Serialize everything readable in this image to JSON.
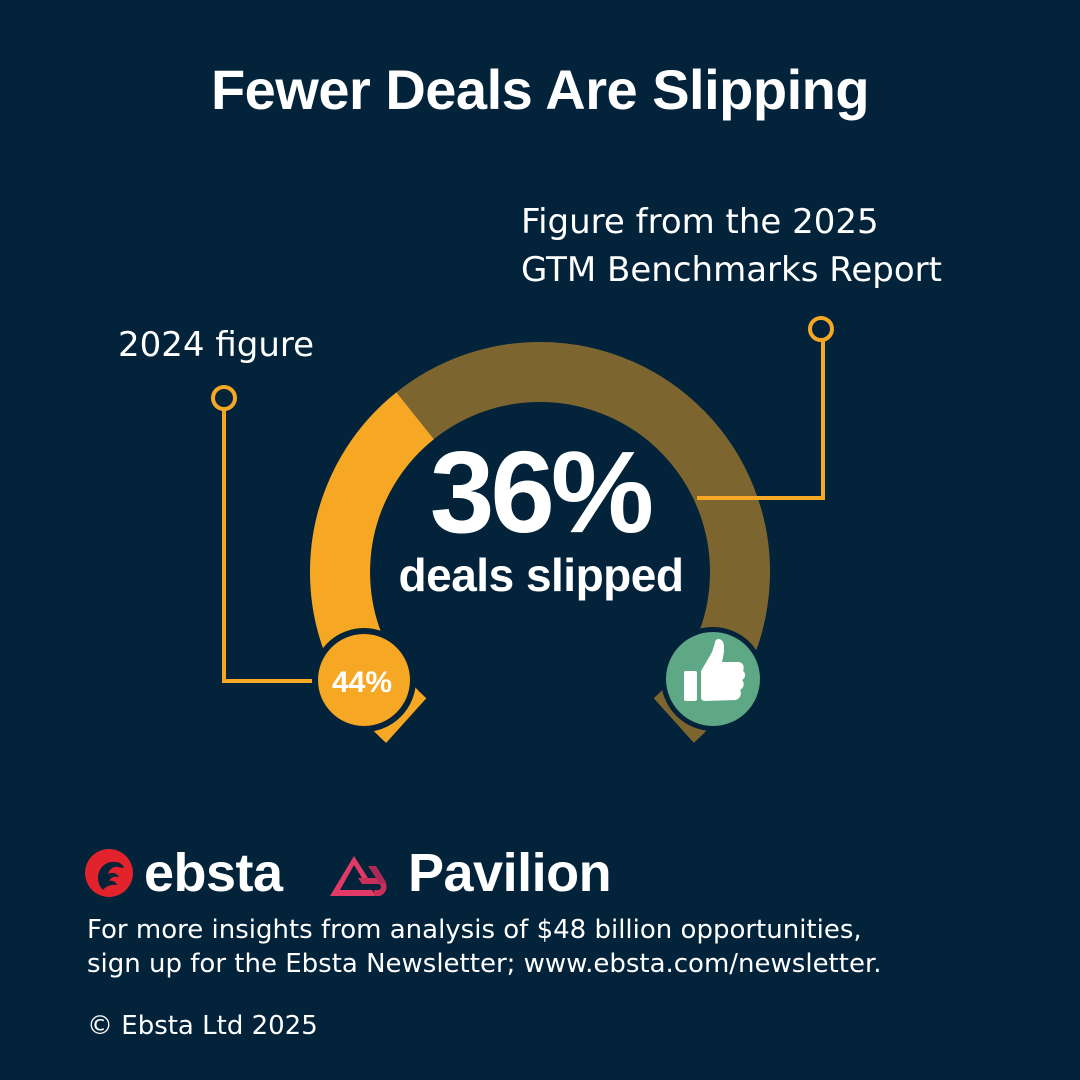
{
  "title": "Fewer Deals Are Slipping",
  "annotations": {
    "current_note": [
      "Figure from the 2025",
      "GTM Benchmarks Report"
    ],
    "previous_note": "2024 figure"
  },
  "chart_data": {
    "type": "gauge",
    "current": {
      "value": 36,
      "label": "36%",
      "caption": "deals slipped"
    },
    "previous": {
      "value": 44,
      "label": "44%"
    },
    "range": [
      0,
      100
    ],
    "colors": {
      "background": "#02233a",
      "track": "#7d652f",
      "fill": "#f6a723",
      "connector": "#f6a723",
      "thumb_badge": "#5fa886"
    }
  },
  "brands": {
    "ebsta": {
      "name": "ebsta",
      "color": "#e2232b",
      "icon": "ebsta-bird-icon"
    },
    "pavilion": {
      "name": "Pavilion",
      "color": "#e23a67",
      "icon": "pavilion-mark-icon"
    }
  },
  "footer": {
    "lines": [
      "For more insights from analysis of $48 billion opportunities,",
      "sign up for the Ebsta Newsletter; www.ebsta.com/newsletter."
    ],
    "copyright": "© Ebsta Ltd 2025"
  }
}
